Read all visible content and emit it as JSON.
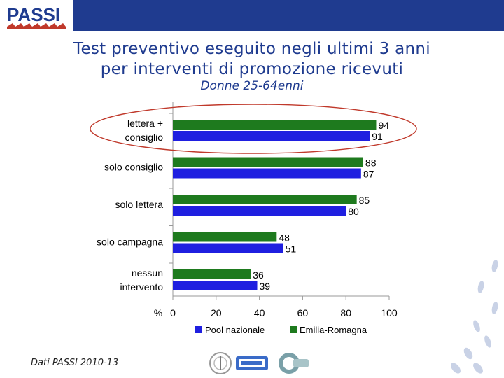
{
  "header": {
    "logo_text": "PASSI",
    "brand_color": "#1f3b8f"
  },
  "title": {
    "line1": "Test preventivo eseguito negli ultimi 3 anni",
    "line2": "per interventi di promozione ricevuti"
  },
  "subtitle": "Donne 25-64enni",
  "chart_data": {
    "type": "bar",
    "orientation": "horizontal",
    "categories": [
      [
        "lettera +",
        "consiglio"
      ],
      [
        "solo consiglio"
      ],
      [
        "solo lettera"
      ],
      [
        "solo campagna"
      ],
      [
        "nessun",
        "intervento"
      ]
    ],
    "series": [
      {
        "name": "Emilia-Romagna",
        "color": "#1e7a1e",
        "values": [
          94,
          88,
          85,
          48,
          36
        ]
      },
      {
        "name": "Pool nazionale",
        "color": "#1f1fe0",
        "values": [
          91,
          87,
          80,
          51,
          39
        ]
      }
    ],
    "legend_order": [
      "Pool nazionale",
      "Emilia-Romagna"
    ],
    "xlabel": "%",
    "xlim": [
      0,
      100
    ],
    "xticks": [
      0,
      20,
      40,
      60,
      80,
      100
    ],
    "legend_position": "bottom",
    "highlight": "lettera + consiglio",
    "highlight_color": "#c0392b"
  },
  "footer": {
    "source": "Dati PASSI 2010-13",
    "logos": [
      "istituto-superiore-di-sanita-logo",
      "ccm-logo",
      "cnesps-logo"
    ]
  }
}
